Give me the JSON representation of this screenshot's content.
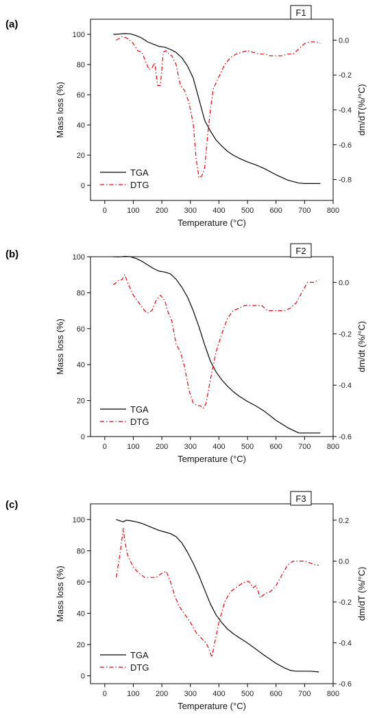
{
  "chart_data": [
    {
      "type": "line",
      "panel_label": "(a)",
      "box_label": "F1",
      "xlabel": "Temperature (°C)",
      "ylabel": "Mass loss (%)",
      "y2label": "dm/dT(%/°C)",
      "xlim": [
        -50,
        800
      ],
      "ylim": [
        -10,
        110
      ],
      "y2lim": [
        -0.92,
        0.12
      ],
      "xticks": [
        0,
        100,
        200,
        300,
        400,
        500,
        600,
        700,
        800
      ],
      "yticks": [
        0,
        20,
        40,
        60,
        80,
        100
      ],
      "y2ticks": [
        0.0,
        -0.2,
        -0.4,
        -0.6,
        -0.8
      ],
      "y2tick_labels": [
        "0.0",
        "-0.2",
        "-0.4",
        "-0.6",
        "-0.8"
      ],
      "legend_position": "lower-left",
      "grid": false,
      "series": [
        {
          "name": "TGA",
          "axis": "left",
          "color": "#000000",
          "style": "solid",
          "x": [
            30,
            50,
            70,
            90,
            110,
            130,
            150,
            170,
            190,
            210,
            230,
            250,
            270,
            290,
            310,
            330,
            350,
            370,
            390,
            410,
            430,
            450,
            470,
            500,
            530,
            560,
            600,
            640,
            680,
            700,
            720,
            755
          ],
          "y": [
            100,
            100.2,
            100.5,
            100.3,
            99.2,
            97.5,
            95,
            93.5,
            92,
            91.5,
            90,
            88,
            84.5,
            79,
            71,
            57,
            43,
            36,
            30,
            26,
            22.5,
            20,
            18,
            15.5,
            13.5,
            11,
            7,
            3.5,
            1.5,
            1.2,
            1.2,
            1.2
          ]
        },
        {
          "name": "DTG",
          "axis": "right",
          "color": "#e8000b",
          "style": "dashdot",
          "x": [
            40,
            60,
            80,
            100,
            115,
            130,
            145,
            155,
            165,
            175,
            185,
            195,
            205,
            215,
            225,
            235,
            250,
            265,
            280,
            295,
            310,
            320,
            330,
            340,
            350,
            360,
            370,
            380,
            400,
            420,
            440,
            460,
            480,
            500,
            520,
            540,
            560,
            580,
            600,
            620,
            640,
            660,
            680,
            700,
            720,
            740,
            755
          ],
          "y": [
            0.0,
            0.02,
            0.01,
            -0.02,
            -0.06,
            -0.07,
            -0.13,
            -0.17,
            -0.16,
            -0.13,
            -0.26,
            -0.26,
            -0.07,
            -0.06,
            -0.08,
            -0.09,
            -0.14,
            -0.26,
            -0.29,
            -0.36,
            -0.48,
            -0.68,
            -0.79,
            -0.78,
            -0.73,
            -0.55,
            -0.4,
            -0.28,
            -0.21,
            -0.14,
            -0.1,
            -0.08,
            -0.07,
            -0.06,
            -0.07,
            -0.08,
            -0.08,
            -0.09,
            -0.09,
            -0.09,
            -0.08,
            -0.08,
            -0.05,
            -0.02,
            -0.01,
            -0.01,
            -0.02
          ]
        }
      ]
    },
    {
      "type": "line",
      "panel_label": "(b)",
      "box_label": "F2",
      "xlabel": "Temperature (°C)",
      "ylabel": "Mass loss (%)",
      "y2label": "dm/dt (%/°C)",
      "xlim": [
        -50,
        800
      ],
      "ylim": [
        0,
        100
      ],
      "y2lim": [
        -0.6,
        0.1
      ],
      "xticks": [
        0,
        100,
        200,
        300,
        400,
        500,
        600,
        700,
        800
      ],
      "yticks": [
        0,
        20,
        40,
        60,
        80,
        100
      ],
      "y2ticks": [
        0.0,
        -0.2,
        -0.4,
        -0.6
      ],
      "y2tick_labels": [
        "0.0",
        "-0.2",
        "-0.4",
        "-0.6"
      ],
      "legend_position": "lower-left",
      "grid": false,
      "series": [
        {
          "name": "TGA",
          "axis": "left",
          "color": "#000000",
          "style": "solid",
          "x": [
            30,
            50,
            70,
            90,
            110,
            130,
            150,
            170,
            190,
            210,
            230,
            250,
            270,
            290,
            310,
            330,
            350,
            370,
            390,
            410,
            430,
            450,
            470,
            500,
            530,
            560,
            600,
            640,
            680,
            700,
            720,
            755
          ],
          "y": [
            100,
            99.9,
            100.2,
            100,
            99,
            97.5,
            95.5,
            93.5,
            92,
            91.5,
            90.5,
            87.5,
            83,
            77.5,
            70,
            61,
            51,
            42,
            36,
            31.5,
            28,
            25,
            22.5,
            19.5,
            17,
            14,
            9,
            5,
            2,
            2,
            2,
            2
          ]
        },
        {
          "name": "DTG",
          "axis": "right",
          "color": "#e8000b",
          "style": "dashdot",
          "x": [
            30,
            50,
            60,
            70,
            80,
            100,
            120,
            140,
            150,
            165,
            180,
            195,
            210,
            220,
            235,
            250,
            265,
            280,
            295,
            310,
            325,
            335,
            345,
            355,
            365,
            375,
            390,
            410,
            430,
            450,
            470,
            490,
            510,
            530,
            550,
            570,
            590,
            610,
            630,
            650,
            670,
            690,
            710,
            730,
            750
          ],
          "y": [
            -0.01,
            0.01,
            0.01,
            0.03,
            0.0,
            -0.05,
            -0.08,
            -0.11,
            -0.12,
            -0.11,
            -0.07,
            -0.05,
            -0.07,
            -0.11,
            -0.15,
            -0.24,
            -0.27,
            -0.33,
            -0.42,
            -0.47,
            -0.48,
            -0.48,
            -0.49,
            -0.47,
            -0.41,
            -0.35,
            -0.27,
            -0.2,
            -0.14,
            -0.11,
            -0.1,
            -0.09,
            -0.09,
            -0.09,
            -0.09,
            -0.11,
            -0.11,
            -0.11,
            -0.11,
            -0.1,
            -0.08,
            -0.04,
            0.0,
            0.0,
            0.01
          ]
        }
      ]
    },
    {
      "type": "line",
      "panel_label": "(c)",
      "box_label": "F3",
      "xlabel": "Temperature (°C)",
      "ylabel": "Mass loss (%)",
      "y2label": "dm/dT (%/°C)",
      "xlim": [
        -50,
        800
      ],
      "ylim": [
        -5,
        110
      ],
      "y2lim": [
        -0.6,
        0.28
      ],
      "xticks": [
        0,
        100,
        200,
        300,
        400,
        500,
        600,
        700,
        800
      ],
      "yticks": [
        0,
        20,
        40,
        60,
        80,
        100
      ],
      "y2ticks": [
        0.2,
        0.0,
        -0.2,
        -0.4,
        -0.6
      ],
      "y2tick_labels": [
        "0.2",
        "0.0",
        "-0.2",
        "-0.4",
        "-0.6"
      ],
      "legend_position": "lower-left",
      "grid": false,
      "series": [
        {
          "name": "TGA",
          "axis": "left",
          "color": "#000000",
          "style": "solid",
          "x": [
            40,
            55,
            65,
            75,
            90,
            110,
            130,
            150,
            170,
            190,
            210,
            230,
            250,
            270,
            290,
            310,
            330,
            350,
            370,
            390,
            410,
            430,
            450,
            470,
            500,
            530,
            560,
            600,
            630,
            650,
            670,
            700,
            720,
            750
          ],
          "y": [
            100,
            99,
            98.5,
            99.5,
            99.2,
            98.5,
            97.5,
            96,
            94.5,
            93,
            92,
            91,
            89,
            85,
            79,
            72,
            64,
            55,
            46,
            39,
            34,
            30,
            27,
            24.5,
            21,
            17,
            13,
            8,
            5,
            3.5,
            3,
            3,
            3,
            2.5
          ]
        },
        {
          "name": "DTG",
          "axis": "right",
          "color": "#e8000b",
          "style": "dashdot",
          "x": [
            40,
            55,
            65,
            70,
            80,
            100,
            120,
            140,
            160,
            180,
            200,
            215,
            230,
            245,
            260,
            280,
            300,
            320,
            340,
            355,
            365,
            375,
            385,
            400,
            420,
            440,
            460,
            480,
            495,
            505,
            520,
            530,
            545,
            560,
            580,
            600,
            620,
            640,
            660,
            680,
            700,
            720,
            740,
            750
          ],
          "y": [
            -0.08,
            0.05,
            0.16,
            0.1,
            0.03,
            -0.03,
            -0.06,
            -0.08,
            -0.08,
            -0.08,
            -0.06,
            -0.05,
            -0.1,
            -0.17,
            -0.22,
            -0.26,
            -0.3,
            -0.35,
            -0.38,
            -0.4,
            -0.43,
            -0.47,
            -0.4,
            -0.3,
            -0.2,
            -0.15,
            -0.13,
            -0.11,
            -0.1,
            -0.1,
            -0.13,
            -0.12,
            -0.18,
            -0.16,
            -0.15,
            -0.12,
            -0.07,
            -0.02,
            0.0,
            0.0,
            0.0,
            -0.01,
            -0.02,
            -0.02
          ]
        }
      ]
    }
  ]
}
